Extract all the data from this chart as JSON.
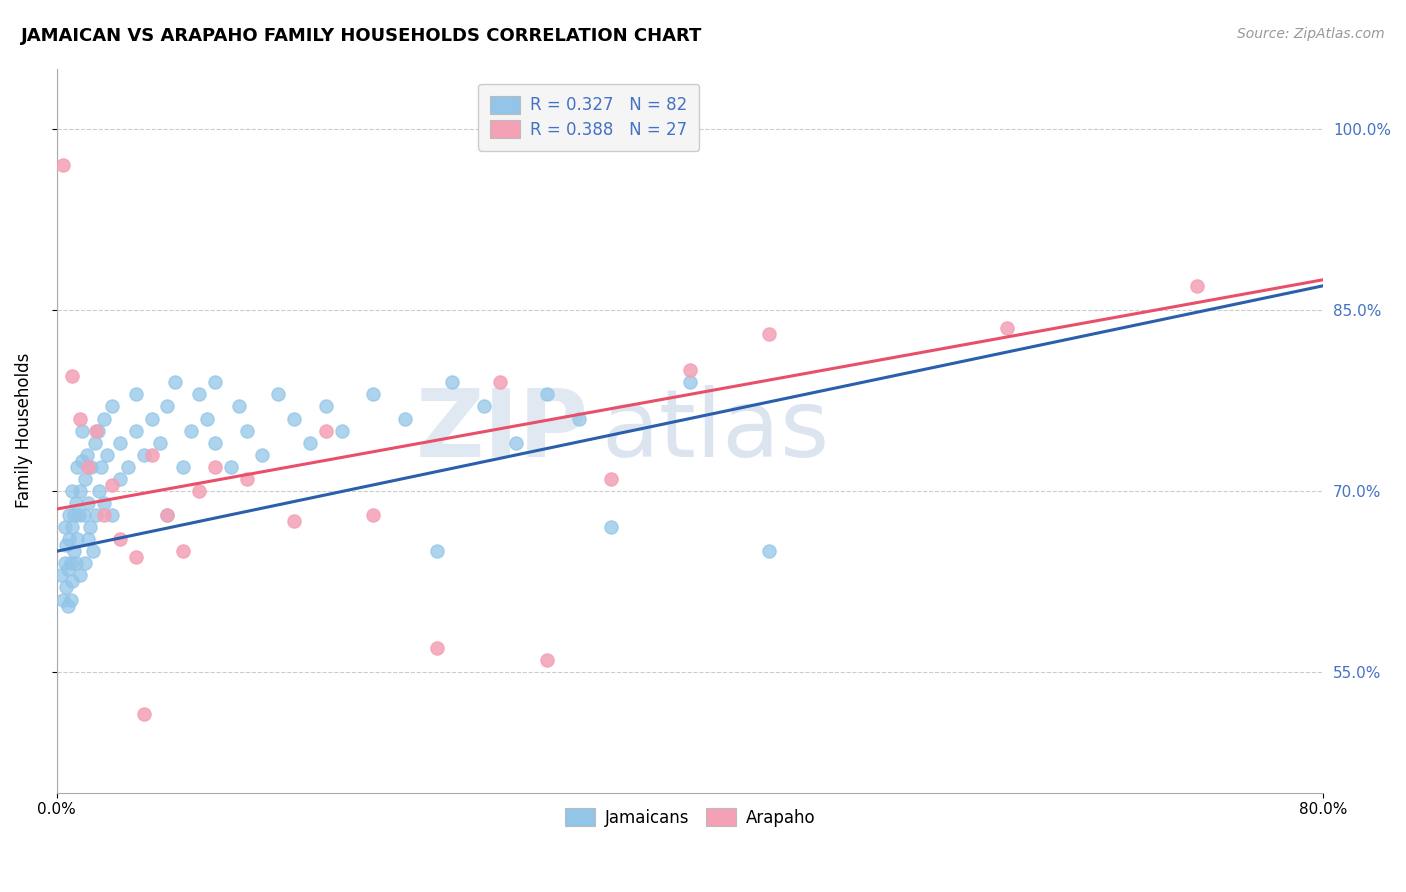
{
  "title": "JAMAICAN VS ARAPAHO FAMILY HOUSEHOLDS CORRELATION CHART",
  "source": "Source: ZipAtlas.com",
  "xlabel": "",
  "ylabel": "Family Households",
  "xlim": [
    0.0,
    80.0
  ],
  "ylim": [
    45.0,
    105.0
  ],
  "yticks": [
    55.0,
    70.0,
    85.0,
    100.0
  ],
  "ytick_labels": [
    "55.0%",
    "70.0%",
    "85.0%",
    "100.0%"
  ],
  "blue_color": "#92C5E8",
  "pink_color": "#F4A0B5",
  "blue_line_color": "#2B5FAB",
  "pink_line_color": "#E8506A",
  "legend_text_color": "#4472C4",
  "grid_color": "#CCCCCC",
  "background_color": "#FFFFFF",
  "watermark_zip": "ZIP",
  "watermark_atlas": "atlas",
  "R_blue": 0.327,
  "N_blue": 82,
  "R_pink": 0.388,
  "N_pink": 27,
  "jamaican_points": [
    [
      0.3,
      63.0
    ],
    [
      0.4,
      61.0
    ],
    [
      0.5,
      64.0
    ],
    [
      0.5,
      67.0
    ],
    [
      0.6,
      62.0
    ],
    [
      0.6,
      65.5
    ],
    [
      0.7,
      60.5
    ],
    [
      0.7,
      63.5
    ],
    [
      0.8,
      66.0
    ],
    [
      0.8,
      68.0
    ],
    [
      0.9,
      61.0
    ],
    [
      0.9,
      64.0
    ],
    [
      1.0,
      62.5
    ],
    [
      1.0,
      67.0
    ],
    [
      1.0,
      70.0
    ],
    [
      1.1,
      65.0
    ],
    [
      1.1,
      68.0
    ],
    [
      1.2,
      64.0
    ],
    [
      1.2,
      69.0
    ],
    [
      1.3,
      66.0
    ],
    [
      1.3,
      72.0
    ],
    [
      1.4,
      68.0
    ],
    [
      1.5,
      63.0
    ],
    [
      1.5,
      70.0
    ],
    [
      1.6,
      72.5
    ],
    [
      1.6,
      75.0
    ],
    [
      1.7,
      68.0
    ],
    [
      1.8,
      64.0
    ],
    [
      1.8,
      71.0
    ],
    [
      1.9,
      73.0
    ],
    [
      2.0,
      66.0
    ],
    [
      2.0,
      69.0
    ],
    [
      2.1,
      67.0
    ],
    [
      2.2,
      72.0
    ],
    [
      2.3,
      65.0
    ],
    [
      2.4,
      74.0
    ],
    [
      2.5,
      68.0
    ],
    [
      2.6,
      75.0
    ],
    [
      2.7,
      70.0
    ],
    [
      2.8,
      72.0
    ],
    [
      3.0,
      69.0
    ],
    [
      3.0,
      76.0
    ],
    [
      3.2,
      73.0
    ],
    [
      3.5,
      68.0
    ],
    [
      3.5,
      77.0
    ],
    [
      4.0,
      71.0
    ],
    [
      4.0,
      74.0
    ],
    [
      4.5,
      72.0
    ],
    [
      5.0,
      75.0
    ],
    [
      5.0,
      78.0
    ],
    [
      5.5,
      73.0
    ],
    [
      6.0,
      76.0
    ],
    [
      6.5,
      74.0
    ],
    [
      7.0,
      68.0
    ],
    [
      7.0,
      77.0
    ],
    [
      7.5,
      79.0
    ],
    [
      8.0,
      72.0
    ],
    [
      8.5,
      75.0
    ],
    [
      9.0,
      78.0
    ],
    [
      9.5,
      76.0
    ],
    [
      10.0,
      74.0
    ],
    [
      10.0,
      79.0
    ],
    [
      11.0,
      72.0
    ],
    [
      11.5,
      77.0
    ],
    [
      12.0,
      75.0
    ],
    [
      13.0,
      73.0
    ],
    [
      14.0,
      78.0
    ],
    [
      15.0,
      76.0
    ],
    [
      16.0,
      74.0
    ],
    [
      17.0,
      77.0
    ],
    [
      18.0,
      75.0
    ],
    [
      20.0,
      78.0
    ],
    [
      22.0,
      76.0
    ],
    [
      24.0,
      65.0
    ],
    [
      25.0,
      79.0
    ],
    [
      27.0,
      77.0
    ],
    [
      29.0,
      74.0
    ],
    [
      31.0,
      78.0
    ],
    [
      33.0,
      76.0
    ],
    [
      35.0,
      67.0
    ],
    [
      40.0,
      79.0
    ],
    [
      45.0,
      65.0
    ]
  ],
  "arapaho_points": [
    [
      0.4,
      97.0
    ],
    [
      1.0,
      79.5
    ],
    [
      1.5,
      76.0
    ],
    [
      2.0,
      72.0
    ],
    [
      2.5,
      75.0
    ],
    [
      3.0,
      68.0
    ],
    [
      3.5,
      70.5
    ],
    [
      4.0,
      66.0
    ],
    [
      5.0,
      64.5
    ],
    [
      5.5,
      51.5
    ],
    [
      6.0,
      73.0
    ],
    [
      7.0,
      68.0
    ],
    [
      8.0,
      65.0
    ],
    [
      9.0,
      70.0
    ],
    [
      10.0,
      72.0
    ],
    [
      12.0,
      71.0
    ],
    [
      15.0,
      67.5
    ],
    [
      17.0,
      75.0
    ],
    [
      20.0,
      68.0
    ],
    [
      24.0,
      57.0
    ],
    [
      28.0,
      79.0
    ],
    [
      31.0,
      56.0
    ],
    [
      35.0,
      71.0
    ],
    [
      40.0,
      80.0
    ],
    [
      45.0,
      83.0
    ],
    [
      60.0,
      83.5
    ],
    [
      72.0,
      87.0
    ]
  ]
}
